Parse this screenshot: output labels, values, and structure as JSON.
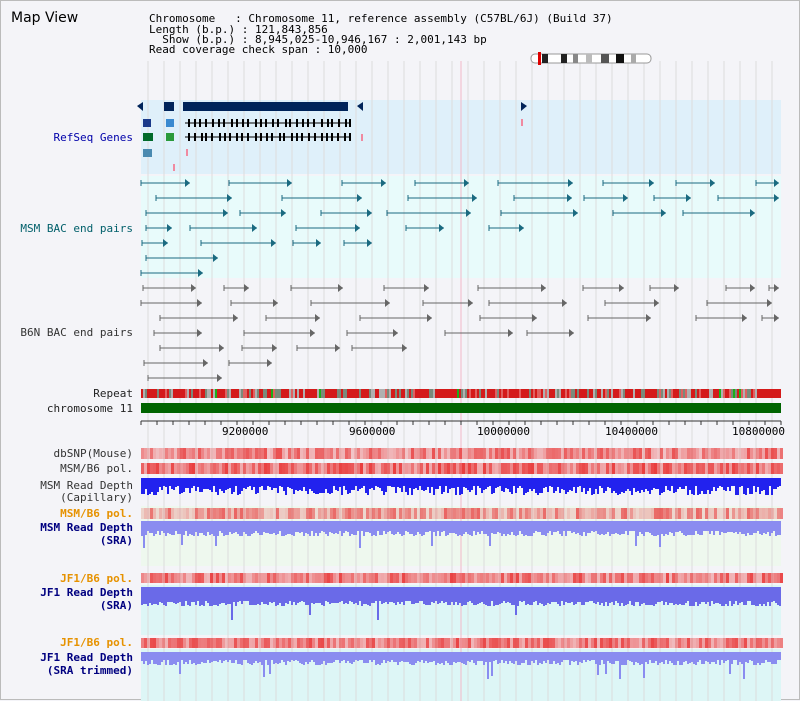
{
  "map_title": "Map View",
  "info": {
    "chromosome_line": "Chromosome   : Chromosome 11, reference assembly (C57BL/6J) (Build 37)",
    "length_line": "Length (b.p.) : 121,843,856",
    "show_line": "  Show (b.p.) : 8,945,025-10,946,167 : 2,001,143 bp",
    "coverage_line": "Read coverage check span : 10,000"
  },
  "tracks": {
    "refseq": "RefSeq Genes",
    "msm_bac": "MSM BAC end pairs",
    "b6n_bac": "B6N BAC end pairs",
    "repeat": "Repeat",
    "chromosome": "chromosome 11",
    "dbsnp": "dbSNP(Mouse)",
    "msm_b6_pol": "MSM/B6 pol.",
    "msm_depth_cap_1": "MSM Read Depth",
    "msm_depth_cap_2": "(Capillary)",
    "msm_b6_pol_2": "MSM/B6 pol.",
    "msm_depth_sra_1": "MSM Read Depth",
    "msm_depth_sra_2": "(SRA)",
    "jf1_b6_pol": "JF1/B6 pol.",
    "jf1_depth_sra_1": "JF1 Read Depth",
    "jf1_depth_sra_2": "(SRA)",
    "jf1_b6_pol_2": "JF1/B6 pol.",
    "jf1_depth_trim_1": "JF1 Read Depth",
    "jf1_depth_trim_2": "(SRA trimmed)"
  },
  "axis_ticks": [
    "9200000",
    "9600000",
    "10000000",
    "10400000",
    "10800000"
  ],
  "colors": {
    "refseq_bg": "#dff0fa",
    "msm_bg": "#e8fbfb",
    "b6n_bg": "#f4f4f8",
    "gene": "#00245a",
    "msm_pair": "#1a6a80",
    "b6n_pair": "#666666",
    "chromosome": "#006400",
    "depth_blue": "#2222ee",
    "depth_light": "#8a8cf0",
    "pol_red": "#e84040",
    "sra_bg": "#eef8ee",
    "jf1_bg": "#ddf6f6"
  }
}
